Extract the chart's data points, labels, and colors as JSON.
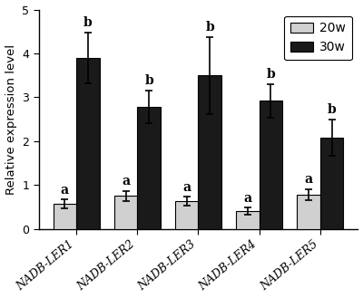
{
  "categories": [
    "NADB-LER1",
    "NADB-LER2",
    "NADB-LER3",
    "NADB-LER4",
    "NADB-LER5"
  ],
  "values_20w": [
    0.57,
    0.75,
    0.63,
    0.4,
    0.78
  ],
  "values_30w": [
    3.9,
    2.78,
    3.5,
    2.92,
    2.08
  ],
  "err_20w": [
    0.1,
    0.12,
    0.1,
    0.08,
    0.13
  ],
  "err_30w": [
    0.58,
    0.38,
    0.88,
    0.38,
    0.42
  ],
  "labels_20w": [
    "a",
    "a",
    "a",
    "a",
    "a"
  ],
  "labels_30w": [
    "b",
    "b",
    "b",
    "b",
    "b"
  ],
  "color_20w": "#d0d0d0",
  "color_30w": "#1a1a1a",
  "ylabel": "Relative expression level",
  "ylim": [
    0,
    5
  ],
  "yticks": [
    0,
    1,
    2,
    3,
    4,
    5
  ],
  "legend_20w": "20w",
  "legend_30w": "30w",
  "bar_width": 0.38,
  "edgecolor": "#000000",
  "label_fontsize": 9.5,
  "tick_fontsize": 9,
  "annotation_fontsize": 10,
  "legend_fontsize": 10
}
